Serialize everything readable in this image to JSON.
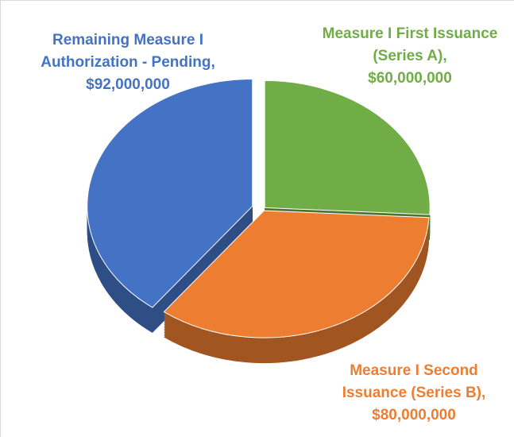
{
  "chart_data": {
    "type": "pie",
    "categories": [
      "Measure I First Issuance (Series A),",
      "Measure I Second Issuance (Series B),",
      "Remaining Measure I Authorization - Pending,"
    ],
    "values": [
      60000000,
      80000000,
      92000000
    ],
    "value_labels": [
      "$60,000,000",
      "$80,000,000",
      "$92,000,000"
    ],
    "colors": [
      "#70ad47",
      "#ed7d31",
      "#4472c4"
    ]
  }
}
